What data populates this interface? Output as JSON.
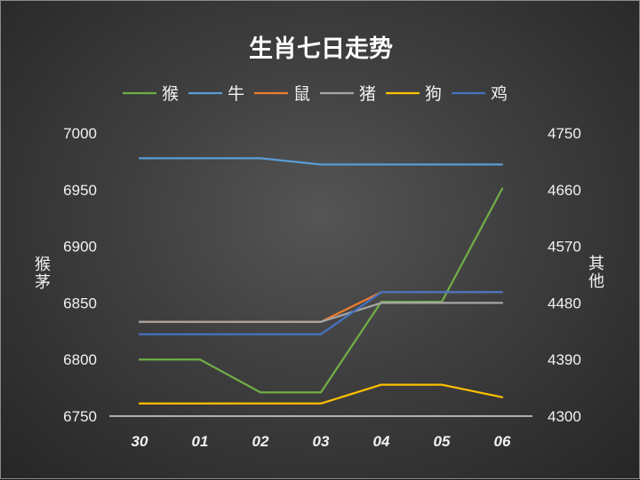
{
  "chart_data": {
    "type": "line",
    "title": "生肖七日走势",
    "categories": [
      "30",
      "01",
      "02",
      "03",
      "04",
      "05",
      "06"
    ],
    "y_left": {
      "label": "猴茅",
      "ylim": [
        6750,
        7000
      ],
      "ticks": [
        "6750",
        "6800",
        "6850",
        "6900",
        "6950",
        "7000"
      ]
    },
    "y_right": {
      "label": "其他",
      "ylim": [
        4300,
        4750
      ],
      "ticks": [
        "4300",
        "4390",
        "4480",
        "4570",
        "4660",
        "4750"
      ]
    },
    "legend_position": "top",
    "grid": false,
    "series": [
      {
        "name": "猴",
        "axis": "left",
        "color": "#70ad47",
        "values": [
          6800,
          6800,
          6771,
          6771,
          6851,
          6851,
          6951
        ]
      },
      {
        "name": "牛",
        "axis": "right",
        "color": "#5b9bd5",
        "values": [
          4710,
          4710,
          4710,
          4700,
          4700,
          4700,
          4700
        ]
      },
      {
        "name": "鼠",
        "axis": "right",
        "color": "#ed7d31",
        "values": [
          4450,
          4450,
          4450,
          4450,
          4497,
          4497,
          4497
        ]
      },
      {
        "name": "猪",
        "axis": "right",
        "color": "#a5a5a5",
        "values": [
          4450,
          4450,
          4450,
          4450,
          4480,
          4480,
          4480
        ]
      },
      {
        "name": "狗",
        "axis": "right",
        "color": "#ffc000",
        "values": [
          4320,
          4320,
          4320,
          4320,
          4350,
          4350,
          4330
        ]
      },
      {
        "name": "鸡",
        "axis": "right",
        "color": "#4472c4",
        "values": [
          4430,
          4430,
          4430,
          4430,
          4497,
          4497,
          4497
        ]
      }
    ]
  }
}
